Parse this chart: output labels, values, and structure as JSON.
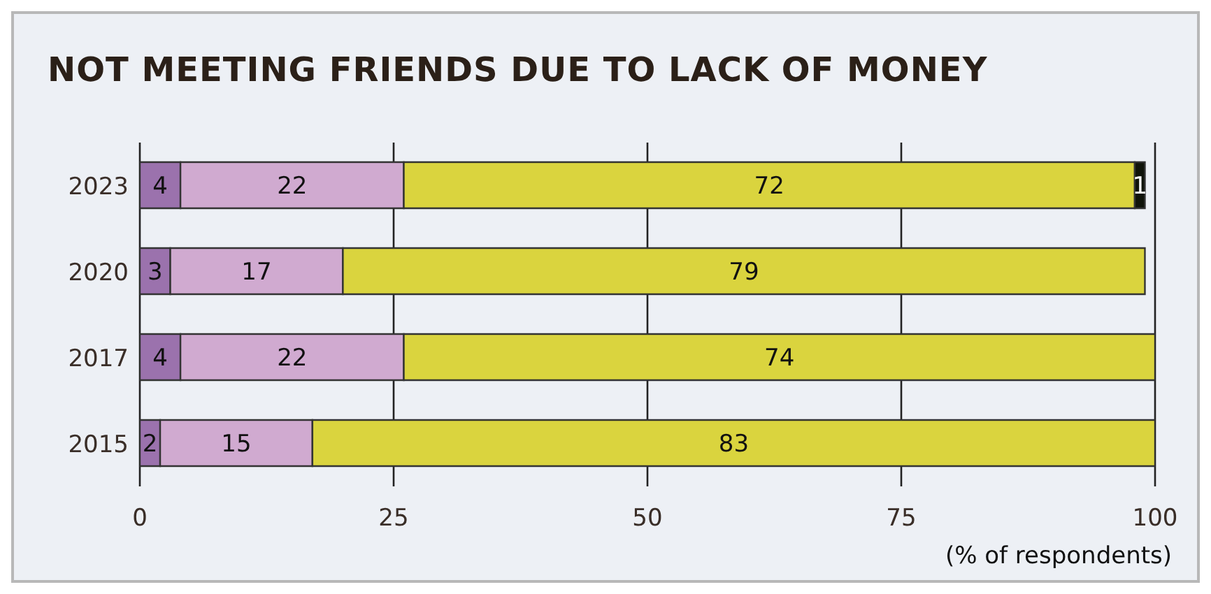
{
  "chart_data": {
    "type": "bar",
    "orientation": "horizontal",
    "stacked": true,
    "title": "NOT MEETING FRIENDS DUE TO LACK OF MONEY",
    "xlabel": "(% of respondents)",
    "categories": [
      "2023",
      "2020",
      "2017",
      "2015"
    ],
    "series": [
      {
        "color": "#9b72ad",
        "values": [
          4,
          3,
          4,
          2
        ]
      },
      {
        "color": "#d0aad0",
        "values": [
          22,
          17,
          22,
          15
        ]
      },
      {
        "color": "#dad43e",
        "values": [
          72,
          79,
          74,
          83
        ]
      },
      {
        "color": "#10140a",
        "values": [
          1,
          null,
          null,
          null
        ]
      }
    ],
    "xlim": [
      0,
      100
    ],
    "xticks": [
      0,
      25,
      50,
      75,
      100
    ],
    "grid": "x",
    "data_labels": true,
    "legend": false
  }
}
